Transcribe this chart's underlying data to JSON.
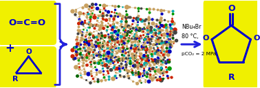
{
  "background_color": "#ffffff",
  "yellow_color": "#f0f000",
  "yellow_light": "#f8f870",
  "blue_color": "#0000cc",
  "arrow_color": "#2222dd",
  "black": "#000000",
  "condition_lines": [
    "NBu₄Br",
    "80 °C,",
    "pCO₂ = 2 MPa"
  ],
  "figure_width": 3.78,
  "figure_height": 1.29,
  "dpi": 100,
  "mof_colors": [
    "#c8a060",
    "#cc2200",
    "#0000bb",
    "#009900",
    "#00aaaa",
    "#444444",
    "#006600"
  ],
  "mof_weights": [
    0.42,
    0.16,
    0.1,
    0.04,
    0.09,
    0.13,
    0.06
  ]
}
